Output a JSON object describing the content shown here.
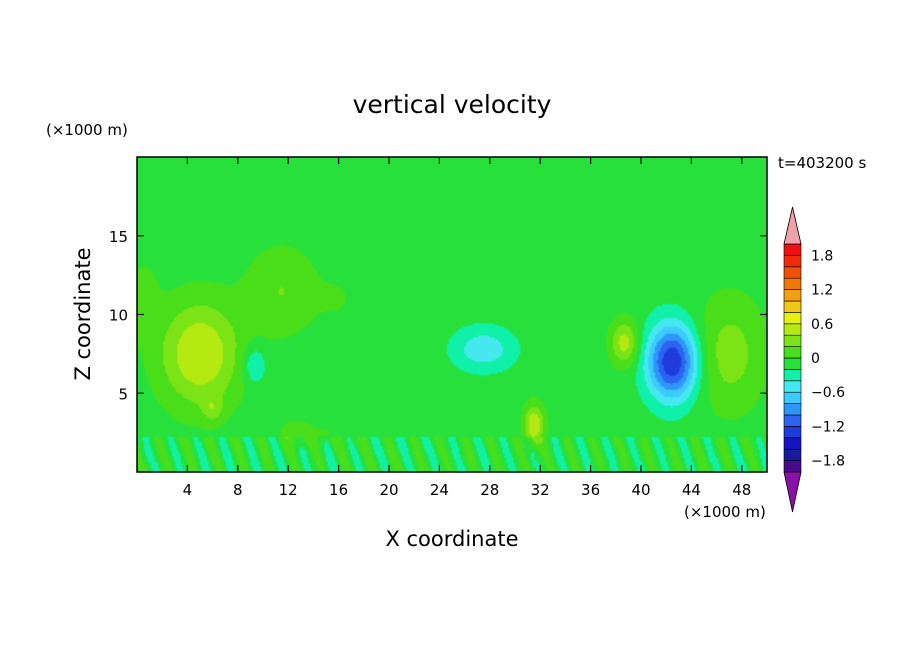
{
  "chart_data": {
    "type": "heatmap",
    "title": "vertical velocity",
    "xlabel": "X coordinate",
    "ylabel": "Z coordinate",
    "x_unit": "(×1000 m)",
    "y_unit": "(×1000 m)",
    "time_label": "t=403200 s",
    "xlim": [
      0,
      50
    ],
    "ylim": [
      0,
      20
    ],
    "xticks": [
      4,
      8,
      12,
      16,
      20,
      24,
      28,
      32,
      36,
      40,
      44,
      48
    ],
    "yticks": [
      5,
      10,
      15
    ],
    "colorbar": {
      "levels": [
        -2.0,
        -1.8,
        -1.6,
        -1.4,
        -1.2,
        -1.0,
        -0.8,
        -0.6,
        -0.4,
        -0.2,
        0,
        0.2,
        0.4,
        0.6,
        0.8,
        1.0,
        1.2,
        1.4,
        1.6,
        1.8,
        2.0
      ],
      "colors": [
        "#4a0a8c",
        "#1a1a9c",
        "#1414c0",
        "#1e3cdc",
        "#2a64f0",
        "#2e96f8",
        "#3ccaff",
        "#46e8f0",
        "#10f0a8",
        "#28e03c",
        "#4ade1a",
        "#7ce416",
        "#b4ea12",
        "#e6f00a",
        "#f0c81a",
        "#f0a010",
        "#f07808",
        "#f05005",
        "#f02a0a",
        "#f01010"
      ],
      "under_color": "#8a10a8",
      "over_color": "#f0a0a8",
      "labels": [
        {
          "value": 1.8,
          "text": "1.8"
        },
        {
          "value": 1.2,
          "text": "1.2"
        },
        {
          "value": 0.6,
          "text": "0.6"
        },
        {
          "value": 0,
          "text": "0"
        },
        {
          "value": -0.6,
          "text": "−0.6"
        },
        {
          "value": -1.2,
          "text": "−1.2"
        },
        {
          "value": -1.8,
          "text": "−1.8"
        }
      ]
    },
    "background_value": -0.1,
    "features": [
      {
        "x": 5,
        "z": 7.5,
        "rx": 4,
        "rz": 4.2,
        "w": 0.7
      },
      {
        "x": 0.5,
        "z": 11,
        "rx": 1.5,
        "rz": 3,
        "w": 0.2
      },
      {
        "x": 11.5,
        "z": 11.5,
        "rx": 3.5,
        "rz": 3.5,
        "w": 0.3
      },
      {
        "x": 16,
        "z": 11,
        "rx": 2,
        "rz": 2,
        "w": 0.1
      },
      {
        "x": 27,
        "z": 13.5,
        "rx": 4,
        "rz": 1.6,
        "w": 0.1
      },
      {
        "x": 19,
        "z": 15.4,
        "rx": 1.5,
        "rz": 0.3,
        "w": 0.05
      },
      {
        "x": 23.5,
        "z": 15.5,
        "rx": 1.5,
        "rz": 0.5,
        "w": 0.05
      },
      {
        "x": 43,
        "z": 15.5,
        "rx": 3.5,
        "rz": 0.4,
        "w": 0.05
      },
      {
        "x": 27.5,
        "z": 7.8,
        "rx": 3,
        "rz": 1.7,
        "w": -0.45
      },
      {
        "x": 9.3,
        "z": 6.8,
        "rx": 1.2,
        "rz": 1.6,
        "w": -0.35
      },
      {
        "x": 42.5,
        "z": 7,
        "rx": 2.5,
        "rz": 3,
        "w": -1.3
      },
      {
        "x": 38.7,
        "z": 8.2,
        "rx": 1.4,
        "rz": 1.8,
        "w": 0.6
      },
      {
        "x": 47,
        "z": 7.5,
        "rx": 3.5,
        "rz": 4.5,
        "w": 0.4
      },
      {
        "x": 31.5,
        "z": 3,
        "rx": 1,
        "rz": 1.6,
        "w": 0.7
      },
      {
        "x": 12.5,
        "z": 2.5,
        "rx": 1.5,
        "rz": 1,
        "w": 0.2
      },
      {
        "x": 15,
        "z": 2.5,
        "rx": 3,
        "rz": 1.2,
        "w": 0.1
      },
      {
        "x": 6,
        "z": 4,
        "rx": 1,
        "rz": 1,
        "w": 0.3
      }
    ]
  }
}
